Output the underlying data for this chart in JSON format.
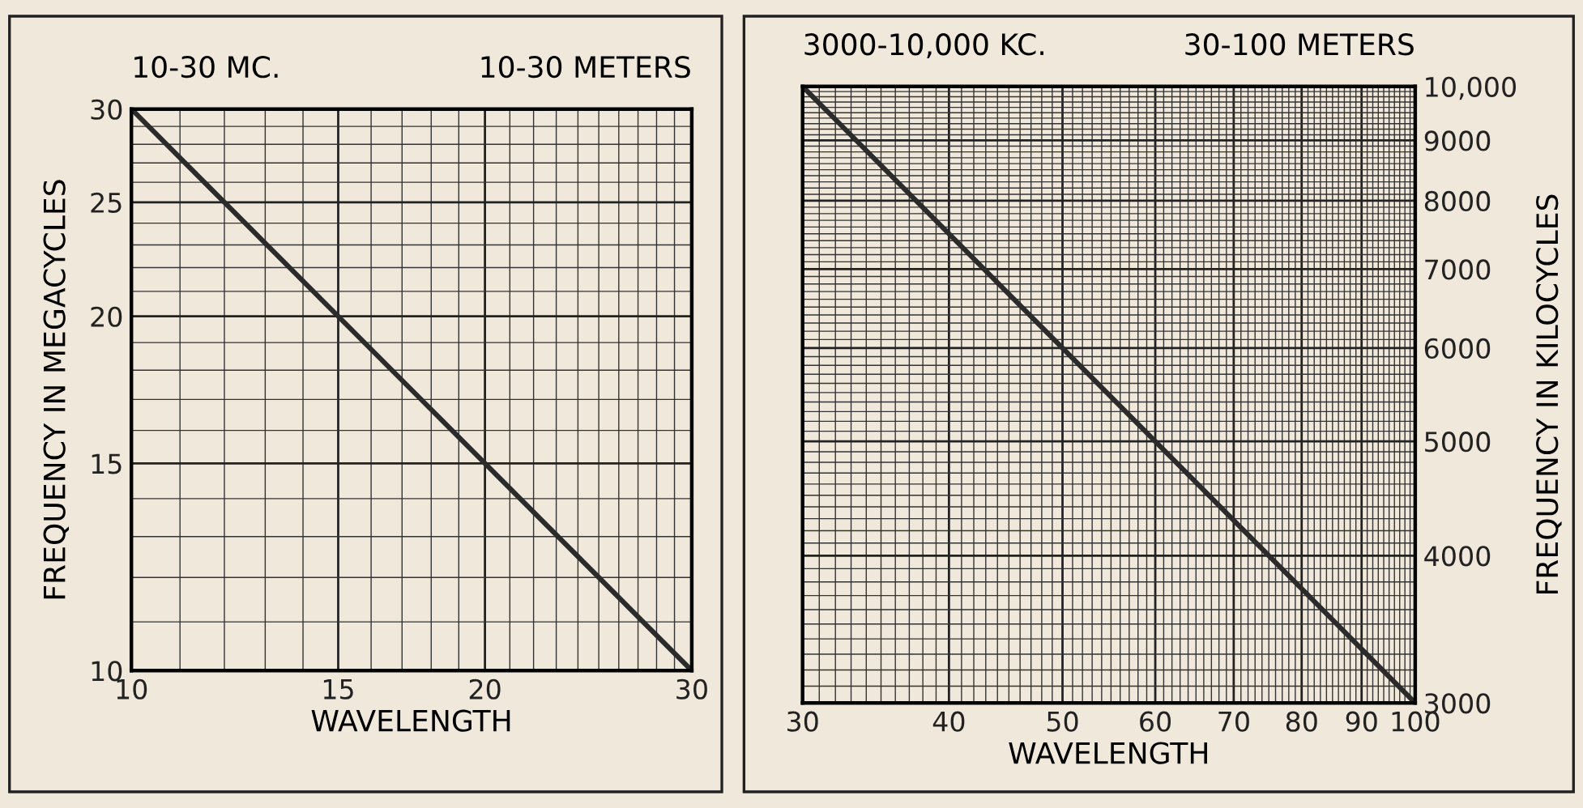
{
  "chart_data": [
    {
      "type": "line",
      "title": "10-30 MC.",
      "subtitle": "10-30 METERS",
      "xlabel": "WAVELENGTH",
      "ylabel": "FREQUENCY IN MEGACYCLES",
      "log": "xy",
      "x": [
        10,
        30
      ],
      "series": [
        {
          "color": "#2b2b2b",
          "values": [
            30,
            10
          ]
        }
      ],
      "xlim": [
        10,
        30
      ],
      "ylim": [
        10,
        30
      ],
      "xticks": [
        10,
        15,
        20,
        30
      ],
      "yticks": [
        10,
        15,
        20,
        25,
        30
      ],
      "grid": true,
      "legend": false
    },
    {
      "type": "line",
      "title": "3000-10,000 KC.",
      "subtitle": "30-100 METERS",
      "xlabel": "WAVELENGTH",
      "ylabel": "FREQUENCY IN KILOCYCLES",
      "log": "xy",
      "x": [
        30,
        100
      ],
      "series": [
        {
          "color": "#2b2b2b",
          "values": [
            10000,
            3000
          ]
        }
      ],
      "xlim": [
        30,
        100
      ],
      "ylim": [
        3000,
        10000
      ],
      "xticks": [
        30,
        40,
        50,
        60,
        70,
        80,
        90,
        100
      ],
      "yticks": [
        3000,
        4000,
        5000,
        6000,
        7000,
        8000,
        9000,
        {
          "value": 10000,
          "label": "10,000"
        }
      ],
      "grid": true,
      "legend": false
    }
  ]
}
